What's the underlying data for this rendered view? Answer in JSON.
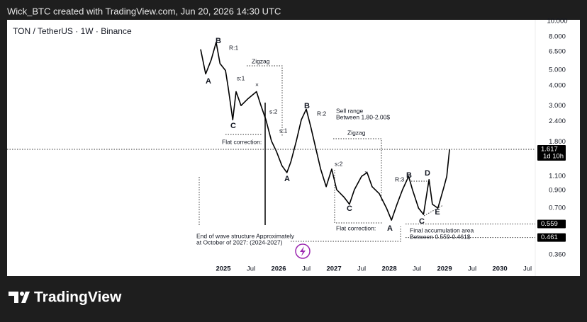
{
  "header": "Wick_BTC created with TradingView.com, Jun 20, 2026 14:30 UTC",
  "brand": "TradingView",
  "chart_data": {
    "type": "line",
    "title": "TON / TetherUS · 1W · Binance",
    "log_y": true,
    "grid": false,
    "color": "#000000",
    "x": [
      2024.59,
      2024.68,
      2024.78,
      2024.87,
      2024.94,
      2025.04,
      2025.09,
      2025.17,
      2025.23,
      2025.32,
      2025.45,
      2025.6,
      2025.68,
      2025.77,
      2025.87,
      2025.96,
      2026.06,
      2026.15,
      2026.22,
      2026.32,
      2026.41,
      2026.5,
      2026.58,
      2026.67,
      2026.76,
      2026.86,
      2026.96,
      2027.05,
      2027.18,
      2027.28,
      2027.37,
      2027.5,
      2027.6,
      2027.69,
      2027.82,
      2027.95,
      2028.04,
      2028.14,
      2028.24,
      2028.35,
      2028.42,
      2028.53,
      2028.62,
      2028.69,
      2028.72,
      2028.78,
      2028.88,
      2028.99,
      2029.04,
      2029.09
    ],
    "values": [
      6.7,
      4.72,
      5.77,
      7.41,
      5.48,
      4.96,
      3.86,
      2.46,
      3.67,
      3.01,
      3.33,
      3.67,
      3.01,
      2.46,
      1.82,
      1.57,
      1.28,
      1.16,
      1.35,
      1.82,
      2.46,
      2.86,
      2.23,
      1.65,
      1.22,
      0.95,
      1.22,
      0.91,
      0.82,
      0.74,
      0.91,
      1.1,
      1.16,
      0.95,
      0.86,
      0.7,
      0.59,
      0.74,
      0.91,
      1.1,
      0.91,
      0.7,
      0.64,
      0.91,
      1.05,
      0.74,
      0.7,
      0.95,
      1.1,
      1.617
    ],
    "xlim": [
      2021.09,
      2030.64
    ],
    "ylim": [
      0.326,
      10.2
    ],
    "xticks": [
      {
        "value": 2025,
        "label": "2025"
      },
      {
        "value": 2025.5,
        "label": "Jul"
      },
      {
        "value": 2026,
        "label": "2026"
      },
      {
        "value": 2026.5,
        "label": "Jul"
      },
      {
        "value": 2027,
        "label": "2027"
      },
      {
        "value": 2027.5,
        "label": "Jul"
      },
      {
        "value": 2028,
        "label": "2028"
      },
      {
        "value": 2028.5,
        "label": "Jul"
      },
      {
        "value": 2029,
        "label": "2029"
      },
      {
        "value": 2029.5,
        "label": "Jul"
      },
      {
        "value": 2030,
        "label": "2030"
      },
      {
        "value": 2030.5,
        "label": "Jul"
      }
    ],
    "yticks": [
      {
        "value": 10,
        "label": "10.000"
      },
      {
        "value": 8,
        "label": "8.000"
      },
      {
        "value": 6.5,
        "label": "6.500"
      },
      {
        "value": 5,
        "label": "5.000"
      },
      {
        "value": 4,
        "label": "4.000"
      },
      {
        "value": 3,
        "label": "3.000"
      },
      {
        "value": 2.4,
        "label": "2.400"
      },
      {
        "value": 1.8,
        "label": "1.800"
      },
      {
        "value": 1.1,
        "label": "1.100"
      },
      {
        "value": 0.9,
        "label": "0.900"
      },
      {
        "value": 0.7,
        "label": "0.700"
      },
      {
        "value": 0.36,
        "label": "0.360"
      }
    ],
    "price_labels": [
      {
        "value": 1.617,
        "label": "1.617",
        "note": "1d 10h"
      },
      {
        "value": 0.559,
        "label": "0.559"
      },
      {
        "value": 0.461,
        "label": "0.461"
      }
    ],
    "annotations": [
      "B",
      "R:1",
      "A",
      "Zigzag",
      "s:1",
      "×",
      "C",
      "s:2",
      "s:1",
      "Flat correction:",
      "B",
      "R:2",
      "Sell range",
      "Between 1.80-2.00$",
      "Zigzag",
      "A",
      "s:2",
      "×",
      "C",
      "Flat correction:",
      "A",
      "B",
      "R:3",
      "D",
      "C",
      "E",
      "Final accumulation area",
      "Between 0.559-0.461$",
      "End of wave structure Approximately",
      "at October of 2027:  (2024-2027)"
    ]
  }
}
